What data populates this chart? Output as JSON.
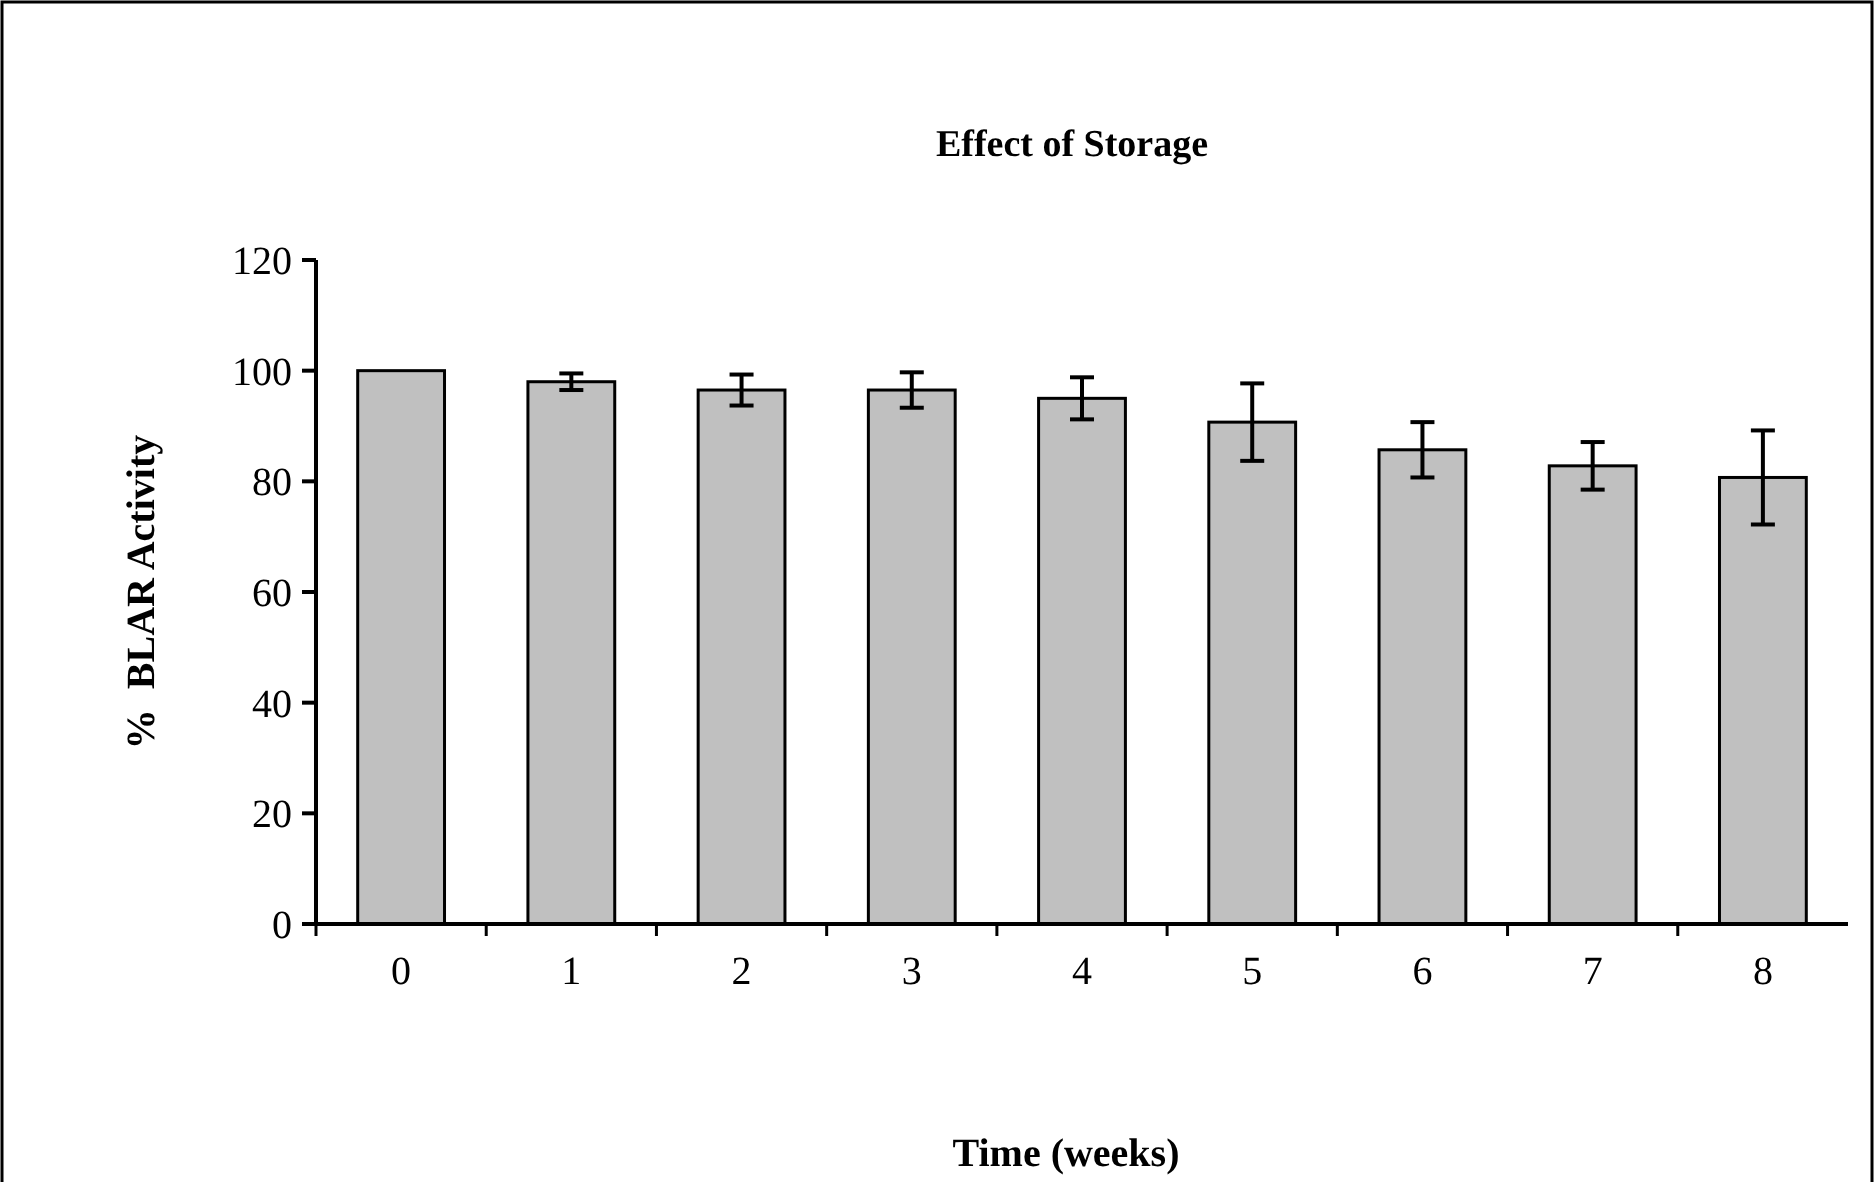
{
  "chart_data": {
    "type": "bar",
    "title": "Effect of Storage",
    "xlabel": "Time (weeks)",
    "ylabel": "%  BLAR Activity",
    "categories": [
      "0",
      "1",
      "2",
      "3",
      "4",
      "5",
      "6",
      "7",
      "8"
    ],
    "values": [
      100,
      98,
      96.5,
      96.5,
      95,
      90.7,
      85.7,
      82.8,
      80.7
    ],
    "errors": [
      null,
      1.5,
      2.8,
      3.2,
      3.8,
      7,
      5,
      4.3,
      8.5
    ],
    "color": "#c0c0c0",
    "ylim": [
      0,
      120
    ],
    "yticks": [
      0,
      20,
      40,
      60,
      80,
      100,
      120
    ],
    "grid": false
  }
}
